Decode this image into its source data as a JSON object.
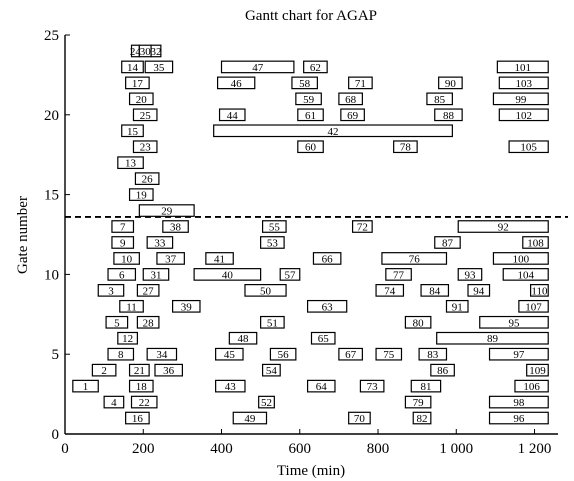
{
  "chart_data": {
    "type": "gantt",
    "title": "Gantt chart for AGAP",
    "xlabel": "Time (min)",
    "ylabel": "Gate number",
    "xlim": [
      0,
      1260
    ],
    "ylim": [
      0,
      25
    ],
    "x_ticks": [
      {
        "value": 0,
        "label": "0"
      },
      {
        "value": 200,
        "label": "200"
      },
      {
        "value": 400,
        "label": "400"
      },
      {
        "value": 600,
        "label": "600"
      },
      {
        "value": 800,
        "label": "800"
      },
      {
        "value": 1000,
        "label": "1 000"
      },
      {
        "value": 1200,
        "label": "1 200"
      }
    ],
    "y_ticks": [
      {
        "value": 0,
        "label": "0"
      },
      {
        "value": 5,
        "label": "5"
      },
      {
        "value": 10,
        "label": "10"
      },
      {
        "value": 15,
        "label": "15"
      },
      {
        "value": 20,
        "label": "20"
      },
      {
        "value": 25,
        "label": "25"
      }
    ],
    "threshold_line": {
      "y": 13.6,
      "style": "dashed"
    },
    "tasks": [
      {
        "label": "1",
        "gate": 3,
        "start": 20,
        "end": 85
      },
      {
        "label": "2",
        "gate": 4,
        "start": 70,
        "end": 130
      },
      {
        "label": "3",
        "gate": 9,
        "start": 85,
        "end": 150
      },
      {
        "label": "4",
        "gate": 2,
        "start": 100,
        "end": 150
      },
      {
        "label": "5",
        "gate": 7,
        "start": 105,
        "end": 160
      },
      {
        "label": "6",
        "gate": 10,
        "start": 110,
        "end": 180
      },
      {
        "label": "7",
        "gate": 13,
        "start": 120,
        "end": 175
      },
      {
        "label": "8",
        "gate": 5,
        "start": 110,
        "end": 175
      },
      {
        "label": "9",
        "gate": 12,
        "start": 120,
        "end": 175
      },
      {
        "label": "10",
        "gate": 11,
        "start": 125,
        "end": 190
      },
      {
        "label": "11",
        "gate": 8,
        "start": 140,
        "end": 200
      },
      {
        "label": "12",
        "gate": 6,
        "start": 135,
        "end": 185
      },
      {
        "label": "13",
        "gate": 17,
        "start": 135,
        "end": 200
      },
      {
        "label": "14",
        "gate": 23,
        "start": 145,
        "end": 200
      },
      {
        "label": "15",
        "gate": 19,
        "start": 145,
        "end": 200
      },
      {
        "label": "16",
        "gate": 1,
        "start": 155,
        "end": 215
      },
      {
        "label": "17",
        "gate": 22,
        "start": 155,
        "end": 215
      },
      {
        "label": "18",
        "gate": 3,
        "start": 165,
        "end": 225
      },
      {
        "label": "19",
        "gate": 15,
        "start": 165,
        "end": 225
      },
      {
        "label": "20",
        "gate": 21,
        "start": 165,
        "end": 225
      },
      {
        "label": "21",
        "gate": 4,
        "start": 165,
        "end": 215
      },
      {
        "label": "22",
        "gate": 2,
        "start": 170,
        "end": 235
      },
      {
        "label": "23",
        "gate": 18,
        "start": 175,
        "end": 235
      },
      {
        "label": "24",
        "gate": 24,
        "start": 170,
        "end": 190
      },
      {
        "label": "25",
        "gate": 20,
        "start": 175,
        "end": 235
      },
      {
        "label": "26",
        "gate": 16,
        "start": 180,
        "end": 240
      },
      {
        "label": "27",
        "gate": 9,
        "start": 185,
        "end": 240
      },
      {
        "label": "28",
        "gate": 7,
        "start": 185,
        "end": 240
      },
      {
        "label": "29",
        "gate": 14,
        "start": 190,
        "end": 330
      },
      {
        "label": "30",
        "gate": 24,
        "start": 190,
        "end": 220
      },
      {
        "label": "31",
        "gate": 10,
        "start": 200,
        "end": 265
      },
      {
        "label": "32",
        "gate": 24,
        "start": 220,
        "end": 245
      },
      {
        "label": "33",
        "gate": 12,
        "start": 210,
        "end": 275
      },
      {
        "label": "34",
        "gate": 5,
        "start": 210,
        "end": 285
      },
      {
        "label": "35",
        "gate": 23,
        "start": 205,
        "end": 275
      },
      {
        "label": "36",
        "gate": 4,
        "start": 230,
        "end": 300
      },
      {
        "label": "37",
        "gate": 11,
        "start": 235,
        "end": 305
      },
      {
        "label": "38",
        "gate": 13,
        "start": 250,
        "end": 315
      },
      {
        "label": "39",
        "gate": 8,
        "start": 275,
        "end": 345
      },
      {
        "label": "40",
        "gate": 10,
        "start": 330,
        "end": 500
      },
      {
        "label": "41",
        "gate": 11,
        "start": 360,
        "end": 430
      },
      {
        "label": "42",
        "gate": 19,
        "start": 380,
        "end": 990
      },
      {
        "label": "43",
        "gate": 3,
        "start": 385,
        "end": 460
      },
      {
        "label": "44",
        "gate": 20,
        "start": 395,
        "end": 460
      },
      {
        "label": "45",
        "gate": 5,
        "start": 385,
        "end": 455
      },
      {
        "label": "46",
        "gate": 22,
        "start": 390,
        "end": 485
      },
      {
        "label": "47",
        "gate": 23,
        "start": 400,
        "end": 585
      },
      {
        "label": "48",
        "gate": 6,
        "start": 420,
        "end": 490
      },
      {
        "label": "49",
        "gate": 1,
        "start": 430,
        "end": 515
      },
      {
        "label": "50",
        "gate": 9,
        "start": 460,
        "end": 565
      },
      {
        "label": "51",
        "gate": 7,
        "start": 500,
        "end": 560
      },
      {
        "label": "52",
        "gate": 2,
        "start": 495,
        "end": 535
      },
      {
        "label": "53",
        "gate": 12,
        "start": 500,
        "end": 560
      },
      {
        "label": "54",
        "gate": 4,
        "start": 505,
        "end": 550
      },
      {
        "label": "55",
        "gate": 13,
        "start": 505,
        "end": 565
      },
      {
        "label": "56",
        "gate": 5,
        "start": 525,
        "end": 590
      },
      {
        "label": "57",
        "gate": 10,
        "start": 550,
        "end": 600
      },
      {
        "label": "58",
        "gate": 22,
        "start": 580,
        "end": 645
      },
      {
        "label": "59",
        "gate": 21,
        "start": 590,
        "end": 655
      },
      {
        "label": "60",
        "gate": 18,
        "start": 595,
        "end": 660
      },
      {
        "label": "61",
        "gate": 20,
        "start": 595,
        "end": 660
      },
      {
        "label": "62",
        "gate": 23,
        "start": 610,
        "end": 670
      },
      {
        "label": "63",
        "gate": 8,
        "start": 620,
        "end": 720
      },
      {
        "label": "64",
        "gate": 3,
        "start": 620,
        "end": 690
      },
      {
        "label": "65",
        "gate": 6,
        "start": 630,
        "end": 690
      },
      {
        "label": "66",
        "gate": 11,
        "start": 635,
        "end": 705
      },
      {
        "label": "67",
        "gate": 5,
        "start": 700,
        "end": 760
      },
      {
        "label": "68",
        "gate": 21,
        "start": 700,
        "end": 760
      },
      {
        "label": "69",
        "gate": 20,
        "start": 705,
        "end": 765
      },
      {
        "label": "70",
        "gate": 1,
        "start": 725,
        "end": 780
      },
      {
        "label": "71",
        "gate": 22,
        "start": 725,
        "end": 785
      },
      {
        "label": "72",
        "gate": 13,
        "start": 735,
        "end": 785
      },
      {
        "label": "73",
        "gate": 3,
        "start": 755,
        "end": 815
      },
      {
        "label": "74",
        "gate": 9,
        "start": 795,
        "end": 865
      },
      {
        "label": "75",
        "gate": 5,
        "start": 795,
        "end": 860
      },
      {
        "label": "76",
        "gate": 11,
        "start": 810,
        "end": 975
      },
      {
        "label": "77",
        "gate": 10,
        "start": 820,
        "end": 885
      },
      {
        "label": "78",
        "gate": 18,
        "start": 840,
        "end": 900
      },
      {
        "label": "79",
        "gate": 2,
        "start": 870,
        "end": 935
      },
      {
        "label": "80",
        "gate": 7,
        "start": 870,
        "end": 935
      },
      {
        "label": "81",
        "gate": 3,
        "start": 885,
        "end": 960
      },
      {
        "label": "82",
        "gate": 1,
        "start": 890,
        "end": 935
      },
      {
        "label": "83",
        "gate": 5,
        "start": 905,
        "end": 975
      },
      {
        "label": "84",
        "gate": 9,
        "start": 910,
        "end": 980
      },
      {
        "label": "85",
        "gate": 21,
        "start": 925,
        "end": 990
      },
      {
        "label": "86",
        "gate": 4,
        "start": 935,
        "end": 995
      },
      {
        "label": "87",
        "gate": 12,
        "start": 945,
        "end": 1010
      },
      {
        "label": "88",
        "gate": 20,
        "start": 945,
        "end": 1015
      },
      {
        "label": "89",
        "gate": 6,
        "start": 950,
        "end": 1235
      },
      {
        "label": "90",
        "gate": 22,
        "start": 955,
        "end": 1015
      },
      {
        "label": "91",
        "gate": 8,
        "start": 975,
        "end": 1030
      },
      {
        "label": "92",
        "gate": 13,
        "start": 1005,
        "end": 1235
      },
      {
        "label": "93",
        "gate": 10,
        "start": 1005,
        "end": 1065
      },
      {
        "label": "94",
        "gate": 9,
        "start": 1030,
        "end": 1085
      },
      {
        "label": "95",
        "gate": 7,
        "start": 1060,
        "end": 1235
      },
      {
        "label": "96",
        "gate": 1,
        "start": 1085,
        "end": 1235
      },
      {
        "label": "97",
        "gate": 5,
        "start": 1085,
        "end": 1235
      },
      {
        "label": "98",
        "gate": 2,
        "start": 1085,
        "end": 1235
      },
      {
        "label": "99",
        "gate": 21,
        "start": 1095,
        "end": 1235
      },
      {
        "label": "100",
        "gate": 11,
        "start": 1095,
        "end": 1235
      },
      {
        "label": "101",
        "gate": 23,
        "start": 1105,
        "end": 1235
      },
      {
        "label": "102",
        "gate": 20,
        "start": 1110,
        "end": 1235
      },
      {
        "label": "103",
        "gate": 22,
        "start": 1110,
        "end": 1235
      },
      {
        "label": "104",
        "gate": 10,
        "start": 1120,
        "end": 1235
      },
      {
        "label": "105",
        "gate": 18,
        "start": 1135,
        "end": 1235
      },
      {
        "label": "106",
        "gate": 3,
        "start": 1150,
        "end": 1235
      },
      {
        "label": "107",
        "gate": 8,
        "start": 1160,
        "end": 1235
      },
      {
        "label": "108",
        "gate": 12,
        "start": 1170,
        "end": 1235
      },
      {
        "label": "109",
        "gate": 4,
        "start": 1180,
        "end": 1235
      },
      {
        "label": "110",
        "gate": 9,
        "start": 1190,
        "end": 1235
      }
    ]
  }
}
